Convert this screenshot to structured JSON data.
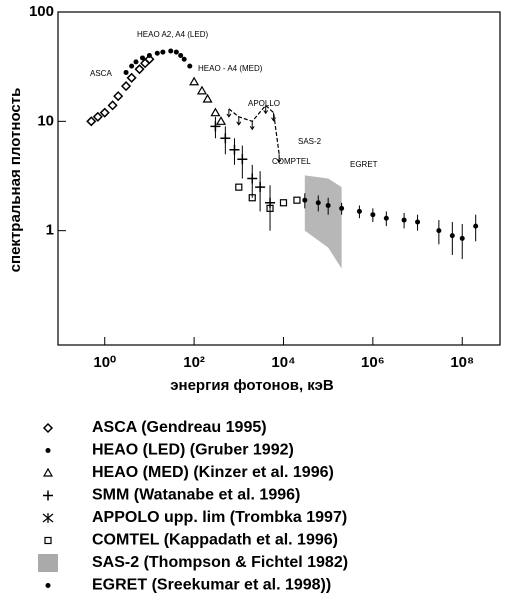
{
  "chart_data": {
    "type": "scatter",
    "xlabel": "энергия фотонов, кэВ",
    "ylabel": "спектральная плотность",
    "xscale": "log",
    "yscale": "log",
    "xlim": [
      0.09,
      700000000
    ],
    "ylim": [
      0.09,
      100
    ],
    "xticks": [
      {
        "value": 1,
        "label": "10⁰"
      },
      {
        "value": 100,
        "label": "10²"
      },
      {
        "value": 10000,
        "label": "10⁴"
      },
      {
        "value": 1000000,
        "label": "10⁶"
      },
      {
        "value": 100000000,
        "label": "10⁸"
      }
    ],
    "yticks": [
      1,
      10,
      100
    ],
    "annotations": [
      "HEAO A2, A4 (LED)",
      "ASCA",
      "HEAO - A4 (MED)",
      "APOLLO",
      "SAS-2",
      "COMPTEL",
      "EGRET"
    ],
    "series": [
      {
        "name": "ASCA (Gendreau 1995)",
        "marker": "diamond",
        "color": "#000000",
        "x": [
          0.5,
          0.7,
          1,
          1.5,
          2,
          3,
          4,
          6,
          8,
          10
        ],
        "values": [
          10,
          11,
          12,
          14,
          17,
          21,
          25,
          30,
          34,
          37
        ]
      },
      {
        "name": "HEAO (LED) (Gruber 1992)",
        "marker": "dot",
        "color": "#000000",
        "x": [
          3,
          4,
          5,
          7,
          10,
          15,
          20,
          30,
          40,
          50,
          60,
          80
        ],
        "values": [
          28,
          32,
          35,
          38,
          40,
          42,
          43,
          44,
          43,
          40,
          37,
          32
        ]
      },
      {
        "name": "HEAO (MED) (Kinzer et al. 1996)",
        "marker": "triangle",
        "color": "#000000",
        "x": [
          100,
          150,
          200,
          300,
          400
        ],
        "values": [
          23,
          19,
          16,
          12,
          10
        ]
      },
      {
        "name": "SMM (Watanabe et al. 1996)",
        "marker": "cross",
        "color": "#000000",
        "x": [
          300,
          500,
          800,
          1200,
          2000,
          3000,
          5000
        ],
        "values": [
          9,
          7,
          5.5,
          4.5,
          3,
          2.5,
          1.8
        ],
        "errors": [
          2,
          2,
          1.5,
          1.5,
          1,
          1,
          0.8
        ]
      },
      {
        "name": "APPOLO upp. lim (Trombka 1997)",
        "marker": "line",
        "color": "#000000",
        "x": [
          600,
          1000,
          2000,
          4000,
          6000,
          8000
        ],
        "values": [
          13,
          11,
          10,
          14,
          12,
          5
        ]
      },
      {
        "name": "COMTEL (Kappadath et al. 1996)",
        "marker": "square",
        "color": "#000000",
        "x": [
          1000,
          2000,
          5000,
          10000,
          20000
        ],
        "values": [
          2.5,
          2.0,
          1.6,
          1.8,
          1.9
        ]
      },
      {
        "name": "SAS-2 (Thompson & Fichtel 1982)",
        "marker": "band",
        "color": "#aaaaaa",
        "x": [
          30000,
          100000,
          200000
        ],
        "lower": [
          1.0,
          0.7,
          0.45
        ],
        "upper": [
          3.2,
          3.0,
          2.5
        ]
      },
      {
        "name": "EGRET (Sreekumar et al. 1998))",
        "marker": "dot",
        "color": "#000000",
        "x": [
          30000,
          60000,
          100000,
          200000,
          500000,
          1000000,
          2000000,
          5000000,
          10000000,
          30000000,
          60000000,
          100000000,
          200000000
        ],
        "values": [
          1.9,
          1.8,
          1.7,
          1.6,
          1.5,
          1.4,
          1.3,
          1.25,
          1.2,
          1.0,
          0.9,
          0.85,
          1.1
        ],
        "errors": [
          0.3,
          0.3,
          0.3,
          0.2,
          0.2,
          0.2,
          0.2,
          0.2,
          0.2,
          0.25,
          0.3,
          0.3,
          0.3
        ]
      }
    ]
  }
}
